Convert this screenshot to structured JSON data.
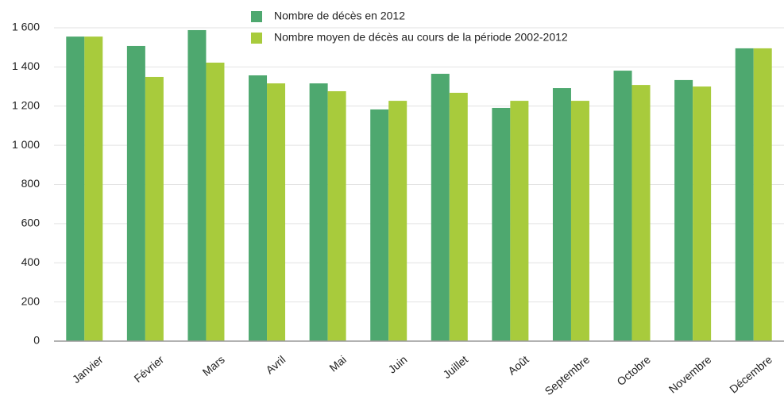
{
  "chart_data": {
    "type": "bar",
    "categories": [
      "Janvier",
      "Février",
      "Mars",
      "Avril",
      "Mai",
      "Juin",
      "Juillet",
      "Août",
      "Septembre",
      "Octobre",
      "Novembre",
      "Décembre"
    ],
    "series": [
      {
        "name": "Nombre de décès en 2012",
        "color": "#4ea86f",
        "values": [
          1555,
          1507,
          1588,
          1357,
          1316,
          1183,
          1365,
          1191,
          1292,
          1381,
          1333,
          1495
        ]
      },
      {
        "name": "Nombre moyen de décès au cours de la période 2002-2012",
        "color": "#a8cb3c",
        "values": [
          1555,
          1349,
          1422,
          1316,
          1276,
          1227,
          1268,
          1227,
          1227,
          1308,
          1300,
          1495
        ]
      }
    ],
    "ylim": [
      0,
      1600
    ],
    "yticks": [
      0,
      200,
      400,
      600,
      800,
      {
        "value": 1000,
        "label": "1 000"
      },
      {
        "value": 1200,
        "label": "1 200"
      },
      {
        "value": 1400,
        "label": "1 400"
      },
      {
        "value": 1600,
        "label": "1 600"
      }
    ],
    "grid": true,
    "legend": "top"
  }
}
